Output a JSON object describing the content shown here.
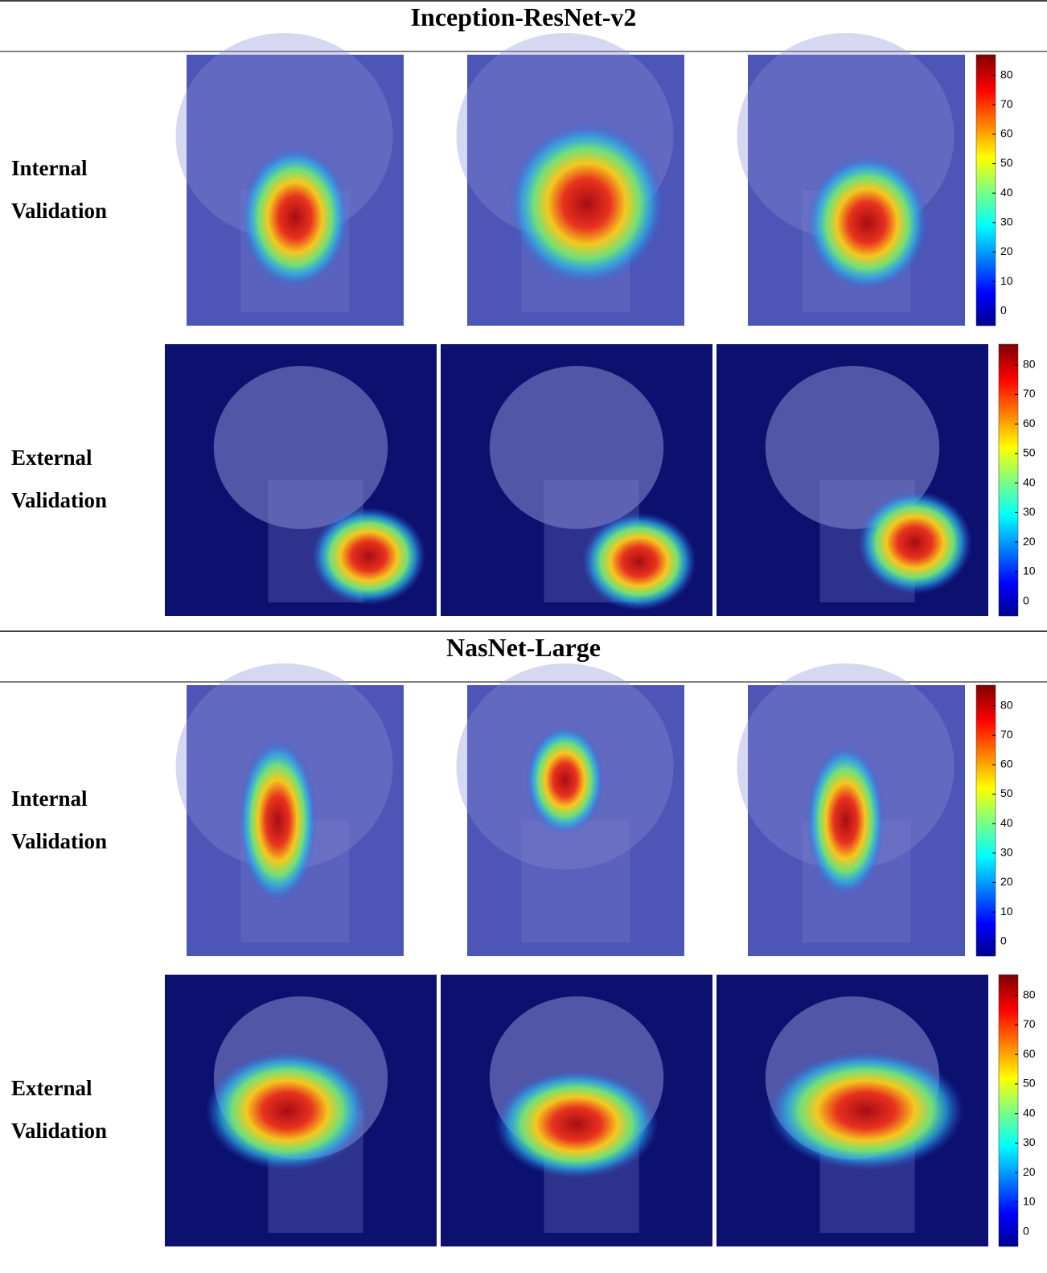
{
  "sections": [
    {
      "title": "Inception-ResNet-v2",
      "rows": [
        {
          "label": [
            "Internal",
            "Validation"
          ]
        },
        {
          "label": [
            "External",
            "Validation"
          ]
        }
      ]
    },
    {
      "title": "NasNet-Large",
      "rows": [
        {
          "label": [
            "Internal",
            "Validation"
          ]
        },
        {
          "label": [
            "External",
            "Validation"
          ]
        }
      ]
    }
  ],
  "colorbar": {
    "ticks": [
      0,
      10,
      20,
      30,
      40,
      50,
      60,
      70,
      80
    ],
    "lim": [
      -5,
      87
    ]
  }
}
